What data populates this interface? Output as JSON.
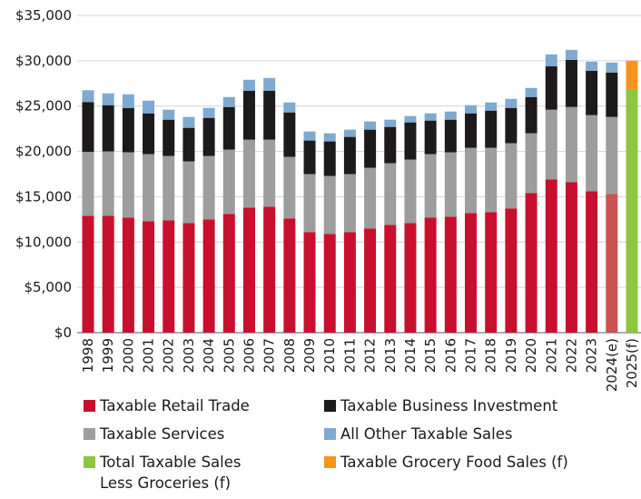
{
  "chart_data": {
    "type": "stacked_bar",
    "categories": [
      "1998",
      "1999",
      "2000",
      "2001",
      "2002",
      "2003",
      "2004",
      "2005",
      "2006",
      "2007",
      "2008",
      "2009",
      "2010",
      "2011",
      "2012",
      "2013",
      "2014",
      "2015",
      "2016",
      "2017",
      "2018",
      "2019",
      "2020",
      "2021",
      "2022",
      "2023",
      "2024(e)",
      "2025(f)"
    ],
    "series": [
      {
        "name": "Taxable Retail Trade",
        "color": "#c8102e",
        "color_overrides": [
          {
            "index": 26,
            "color": "#c9534f"
          }
        ],
        "values": [
          12900,
          12900,
          12700,
          12300,
          12400,
          12100,
          12500,
          13100,
          13800,
          13900,
          12600,
          11100,
          10900,
          11100,
          11500,
          11900,
          12100,
          12700,
          12800,
          13200,
          13300,
          13700,
          15400,
          16900,
          16600,
          15600,
          15300,
          null
        ]
      },
      {
        "name": "Taxable Services",
        "color": "#9d9d9d",
        "values": [
          7050,
          7100,
          7200,
          7400,
          7100,
          6800,
          7000,
          7100,
          7500,
          7400,
          6800,
          6400,
          6400,
          6400,
          6700,
          6800,
          7000,
          7000,
          7100,
          7200,
          7100,
          7200,
          6600,
          7700,
          8300,
          8400,
          8500,
          null
        ]
      },
      {
        "name": "Total Taxable Sales Less Groceries (f)",
        "color": "#8dc63f",
        "values": [
          null,
          null,
          null,
          null,
          null,
          null,
          null,
          null,
          null,
          null,
          null,
          null,
          null,
          null,
          null,
          null,
          null,
          null,
          null,
          null,
          null,
          null,
          null,
          null,
          null,
          null,
          null,
          26800
        ]
      },
      {
        "name": "Taxable Business Investment",
        "color": "#1c1a1b",
        "values": [
          5500,
          5100,
          4900,
          4500,
          4000,
          3700,
          4200,
          4700,
          5400,
          5400,
          4900,
          3700,
          3800,
          4100,
          4200,
          4000,
          4100,
          3700,
          3600,
          3800,
          4100,
          3900,
          4000,
          4800,
          5200,
          4900,
          4900,
          null
        ]
      },
      {
        "name": "All Other Taxable Sales",
        "color": "#7ea9d1",
        "values": [
          1300,
          1300,
          1500,
          1400,
          1100,
          1200,
          1100,
          1100,
          1200,
          1400,
          1100,
          1000,
          900,
          800,
          900,
          800,
          700,
          800,
          900,
          900,
          900,
          1000,
          1000,
          1300,
          1100,
          1000,
          1100,
          null
        ]
      },
      {
        "name": "Taxable Grocery Food Sales (f)",
        "color": "#f7941d",
        "values": [
          null,
          null,
          null,
          null,
          null,
          null,
          null,
          null,
          null,
          null,
          null,
          null,
          null,
          null,
          null,
          null,
          null,
          null,
          null,
          null,
          null,
          null,
          null,
          null,
          null,
          null,
          null,
          3200
        ]
      }
    ],
    "ylim": [
      0,
      35000
    ],
    "yticks": [
      {
        "value": 0,
        "label": "$0"
      },
      {
        "value": 5000,
        "label": "$5,000"
      },
      {
        "value": 10000,
        "label": "$10,000"
      },
      {
        "value": 15000,
        "label": "$15,000"
      },
      {
        "value": 20000,
        "label": "$20,000"
      },
      {
        "value": 25000,
        "label": "$25,000"
      },
      {
        "value": 30000,
        "label": "$30,000"
      },
      {
        "value": 35000,
        "label": "$35,000"
      }
    ],
    "grid": true
  }
}
